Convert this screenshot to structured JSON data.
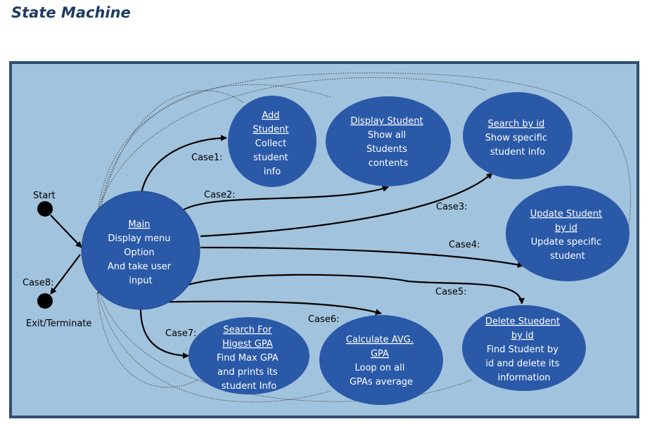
{
  "title": "State Machine",
  "colors": {
    "page": "#ffffff",
    "title": "#1f3b63",
    "panel": "#a2c3dd",
    "panel_border": "#2f4f6f",
    "node_fill": "#2a59a8",
    "node_text": "#ffffff",
    "edge": "#000000"
  },
  "nodes": {
    "main": [
      "Main",
      "Display menu",
      "Option",
      "And take user",
      "input"
    ],
    "add": [
      "Add",
      "Student",
      "Collect",
      "student",
      "info"
    ],
    "display": [
      "Display Student",
      "Show all",
      "Students",
      "contents"
    ],
    "search": [
      "Search by id",
      "Show specific",
      "student info"
    ],
    "update": [
      "Update Student",
      "by id",
      "Update specific",
      "student"
    ],
    "delete": [
      "Delete Stuedent",
      "by id",
      "Find Student by",
      "id and delete its",
      "information"
    ],
    "calc": [
      "Calculate AVG.",
      "GPA",
      "Loop on all",
      "GPAs average"
    ],
    "max": [
      "Search For",
      "Higest GPA",
      "Find Max GPA",
      "and prints its",
      "student Info"
    ]
  },
  "labels": {
    "start": "Start",
    "exit": "Exit/Terminate",
    "case1": "Case1:",
    "case2": "Case2:",
    "case3": "Case3:",
    "case4": "Case4:",
    "case5": "Case5:",
    "case6": "Case6:",
    "case7": "Case7:",
    "case8": "Case8:"
  }
}
